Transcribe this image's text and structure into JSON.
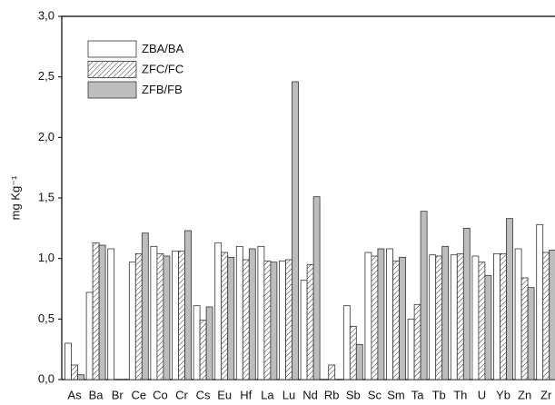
{
  "chart_data": {
    "type": "bar",
    "y_label": "mg Kg⁻¹",
    "categories": [
      "As",
      "Ba",
      "Br",
      "Ce",
      "Co",
      "Cr",
      "Cs",
      "Eu",
      "Hf",
      "La",
      "Lu",
      "Nd",
      "Rb",
      "Sb",
      "Sc",
      "Sm",
      "Ta",
      "Tb",
      "Th",
      "U",
      "Yb",
      "Zn",
      "Zr"
    ],
    "series": [
      {
        "name": "ZBA/BA",
        "color": "#ffffff",
        "hatch": false,
        "values": [
          0.3,
          0.72,
          1.08,
          0.97,
          1.1,
          1.06,
          0.61,
          1.13,
          1.1,
          1.1,
          0.98,
          0.82,
          null,
          0.61,
          1.05,
          1.08,
          0.5,
          1.03,
          1.03,
          1.02,
          1.04,
          1.08,
          1.28
        ]
      },
      {
        "name": "ZFC/FC",
        "color": "#ffffff",
        "hatch": true,
        "values": [
          0.12,
          1.13,
          null,
          1.04,
          1.04,
          1.06,
          0.49,
          1.05,
          0.99,
          0.98,
          0.99,
          0.95,
          0.12,
          0.44,
          1.02,
          0.98,
          0.62,
          1.02,
          1.04,
          0.97,
          1.04,
          0.84,
          1.05
        ]
      },
      {
        "name": "ZFB/FB",
        "color": "#bdbdbd",
        "hatch": false,
        "values": [
          0.04,
          1.11,
          null,
          1.21,
          1.02,
          1.23,
          0.6,
          1.01,
          1.08,
          0.97,
          2.46,
          1.51,
          null,
          0.29,
          1.08,
          1.01,
          1.39,
          1.1,
          1.25,
          0.86,
          1.33,
          0.76,
          1.07
        ]
      }
    ],
    "ylim": [
      0,
      3
    ],
    "yticks": [
      {
        "value": 0,
        "label": "0,0"
      },
      {
        "value": 0.5,
        "label": "0,5"
      },
      {
        "value": 1,
        "label": "1,0"
      },
      {
        "value": 1.5,
        "label": "1,5"
      },
      {
        "value": 2,
        "label": "2,0"
      },
      {
        "value": 2.5,
        "label": "2,5"
      },
      {
        "value": 3,
        "label": "3,0"
      }
    ],
    "legend": "upper-left"
  }
}
